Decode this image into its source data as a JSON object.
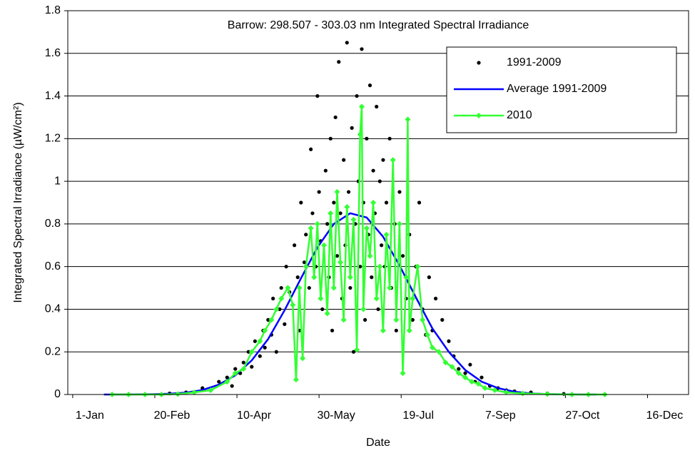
{
  "chart_data": {
    "type": "scatter",
    "title": "Barrow: 298.507 - 303.03 nm Integrated Spectral Irradiance",
    "x_label": "Date",
    "y_label": "Integrated Spectral Irradiance (µW/cm²)",
    "xlim": [
      -2,
      376
    ],
    "xticks": [
      {
        "value": 1,
        "label": "1-Jan"
      },
      {
        "value": 51,
        "label": "20-Feb"
      },
      {
        "value": 101,
        "label": "10-Apr"
      },
      {
        "value": 151,
        "label": "30-May"
      },
      {
        "value": 201,
        "label": "19-Jul"
      },
      {
        "value": 251,
        "label": "7-Sep"
      },
      {
        "value": 301,
        "label": "27-Oct"
      },
      {
        "value": 351,
        "label": "16-Dec"
      }
    ],
    "ylim": [
      0,
      1.8
    ],
    "yticks": [
      0,
      0.2,
      0.4,
      0.6,
      0.8,
      1,
      1.2,
      1.4,
      1.6,
      1.8
    ],
    "grid": true,
    "legend": "top-right",
    "series": [
      {
        "name": "1991-2009",
        "color": "#000000",
        "style": "points",
        "x": [
          60,
          70,
          80,
          85,
          90,
          95,
          98,
          100,
          103,
          105,
          108,
          110,
          112,
          115,
          117,
          118,
          120,
          122,
          123,
          125,
          127,
          128,
          130,
          131,
          133,
          135,
          136,
          138,
          139,
          140,
          142,
          143,
          145,
          146,
          147,
          149,
          150,
          151,
          152,
          153,
          155,
          156,
          157,
          158,
          159,
          160,
          161,
          162,
          163,
          164,
          165,
          166,
          167,
          168,
          169,
          170,
          171,
          172,
          173,
          174,
          175,
          176,
          177,
          178,
          179,
          180,
          181,
          182,
          183,
          184,
          185,
          186,
          187,
          188,
          189,
          190,
          191,
          192,
          194,
          195,
          197,
          198,
          200,
          202,
          204,
          206,
          208,
          210,
          212,
          214,
          216,
          218,
          220,
          222,
          224,
          226,
          228,
          230,
          233,
          236,
          240,
          243,
          246,
          250,
          255,
          260,
          265,
          270,
          280,
          290,
          300
        ],
        "values": [
          0.005,
          0.01,
          0.03,
          0.02,
          0.06,
          0.08,
          0.04,
          0.12,
          0.1,
          0.15,
          0.2,
          0.13,
          0.25,
          0.18,
          0.3,
          0.22,
          0.35,
          0.28,
          0.45,
          0.2,
          0.4,
          0.5,
          0.33,
          0.6,
          0.48,
          0.42,
          0.7,
          0.55,
          0.3,
          0.9,
          0.62,
          0.75,
          0.5,
          1.15,
          0.85,
          0.6,
          1.4,
          0.95,
          0.72,
          0.4,
          1.05,
          0.8,
          0.55,
          1.2,
          0.3,
          0.9,
          1.3,
          0.65,
          1.56,
          0.85,
          0.45,
          1.1,
          0.7,
          1.65,
          0.95,
          0.5,
          1.25,
          0.2,
          0.8,
          1.4,
          1.0,
          0.6,
          1.62,
          0.9,
          0.35,
          1.2,
          0.75,
          1.45,
          0.55,
          1.05,
          0.85,
          1.35,
          0.4,
          1.0,
          0.7,
          1.1,
          0.6,
          0.9,
          1.2,
          0.5,
          0.8,
          0.3,
          0.95,
          0.65,
          0.45,
          0.75,
          0.35,
          0.6,
          0.9,
          0.4,
          0.28,
          0.55,
          0.3,
          0.45,
          0.2,
          0.35,
          0.15,
          0.25,
          0.18,
          0.12,
          0.1,
          0.14,
          0.06,
          0.08,
          0.04,
          0.03,
          0.02,
          0.015,
          0.01,
          0.005,
          0.003
        ]
      },
      {
        "name": "Average 1991-2009",
        "color": "#0000ff",
        "style": "line",
        "x": [
          20,
          30,
          40,
          50,
          60,
          70,
          80,
          90,
          100,
          110,
          120,
          130,
          140,
          150,
          160,
          170,
          180,
          190,
          200,
          210,
          220,
          230,
          240,
          250,
          260,
          270,
          280,
          290,
          300,
          310,
          320
        ],
        "values": [
          0,
          0,
          0.0004,
          0.0013,
          0.0037,
          0.009,
          0.021,
          0.046,
          0.09,
          0.16,
          0.26,
          0.395,
          0.545,
          0.69,
          0.8,
          0.85,
          0.83,
          0.74,
          0.605,
          0.455,
          0.31,
          0.2,
          0.115,
          0.06,
          0.03,
          0.013,
          0.005,
          0.002,
          0.001,
          0,
          0
        ]
      },
      {
        "name": "2010",
        "color": "#33ff33",
        "style": "line-diamond",
        "x": [
          25,
          35,
          45,
          55,
          65,
          75,
          85,
          95,
          100,
          105,
          110,
          115,
          118,
          122,
          125,
          128,
          132,
          135,
          137,
          139,
          141,
          143,
          146,
          148,
          150,
          152,
          154,
          156,
          158,
          160,
          162,
          164,
          166,
          168,
          170,
          172,
          174,
          176,
          177,
          178,
          180,
          182,
          184,
          186,
          188,
          190,
          192,
          194,
          196,
          198,
          200,
          202,
          204,
          205,
          206,
          208,
          211,
          214,
          217,
          220,
          224,
          228,
          232,
          236,
          240,
          244,
          248,
          252,
          258,
          265,
          275,
          290,
          305,
          315,
          325
        ],
        "values": [
          0,
          0,
          0,
          0,
          0.002,
          0.01,
          0.02,
          0.06,
          0.1,
          0.12,
          0.2,
          0.25,
          0.3,
          0.35,
          0.4,
          0.45,
          0.5,
          0.42,
          0.07,
          0.5,
          0.17,
          0.6,
          0.78,
          0.55,
          0.8,
          0.45,
          0.7,
          0.38,
          0.85,
          0.5,
          0.95,
          0.62,
          0.35,
          0.88,
          0.55,
          0.82,
          0.21,
          1.22,
          1.35,
          0.4,
          0.78,
          0.65,
          0.9,
          0.45,
          0.6,
          0.3,
          0.75,
          0.5,
          1.1,
          0.35,
          0.8,
          0.1,
          0.55,
          1.29,
          0.3,
          0.45,
          0.6,
          0.35,
          0.28,
          0.22,
          0.2,
          0.15,
          0.13,
          0.1,
          0.08,
          0.06,
          0.05,
          0.03,
          0.02,
          0.01,
          0.005,
          0.002,
          0,
          0,
          0
        ]
      }
    ]
  }
}
